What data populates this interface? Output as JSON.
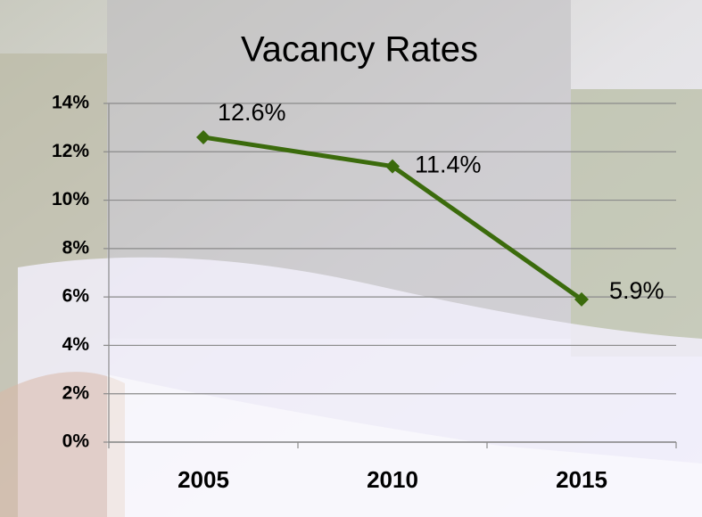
{
  "chart_data": {
    "type": "line",
    "title": "Vacancy Rates",
    "categories": [
      "2005",
      "2010",
      "2015"
    ],
    "values": [
      12.6,
      11.4,
      5.9
    ],
    "value_labels": [
      "12.6%",
      "11.4%",
      "5.9%"
    ],
    "color": "#3b6b0c",
    "ylim": [
      0,
      14
    ],
    "yticks": [
      {
        "value": 0,
        "label": "0%"
      },
      {
        "value": 2,
        "label": "2%"
      },
      {
        "value": 4,
        "label": "4%"
      },
      {
        "value": 6,
        "label": "6%"
      },
      {
        "value": 8,
        "label": "8%"
      },
      {
        "value": 10,
        "label": "10%"
      },
      {
        "value": 12,
        "label": "12%"
      },
      {
        "value": 14,
        "label": "14%"
      }
    ],
    "grid": true
  }
}
